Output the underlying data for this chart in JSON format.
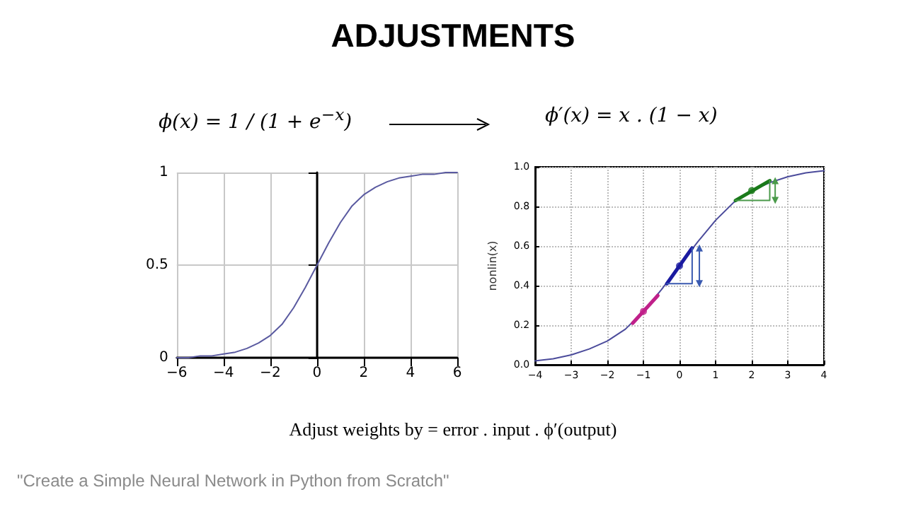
{
  "chart_data": [
    {
      "type": "line",
      "title": "ADJUSTMENTS",
      "annotations": [
        "ϕ(x) = 1 / (1 + e$^{−x}$)"
      ],
      "x": [
        -6,
        -5.5,
        -5,
        -4.5,
        -4,
        -3.5,
        -3,
        -2.5,
        -2,
        -1.5,
        -1,
        -0.5,
        0,
        0.5,
        1,
        1.5,
        2,
        2.5,
        3,
        3.5,
        4,
        4.5,
        5,
        5.5,
        6
      ],
      "series": [
        {
          "color": "#5a5aa0",
          "values": [
            0.0,
            0.0,
            0.01,
            0.01,
            0.02,
            0.03,
            0.05,
            0.08,
            0.12,
            0.18,
            0.27,
            0.38,
            0.5,
            0.62,
            0.73,
            0.82,
            0.88,
            0.92,
            0.95,
            0.97,
            0.98,
            0.99,
            0.99,
            1.0,
            1.0
          ]
        }
      ],
      "xlim": [
        -6,
        6
      ],
      "xticks": [
        {
          "value": -6,
          "label": "−6"
        },
        {
          "value": -4,
          "label": "−4"
        },
        {
          "value": -2,
          "label": "−2"
        },
        0,
        2,
        4,
        6
      ],
      "ylim": [
        0,
        1
      ],
      "yticks": [
        0,
        0.5,
        1
      ],
      "grid": true,
      "marker": "none",
      "line_style": "solid"
    },
    {
      "type": "line",
      "ylabel": "nonlin(x)",
      "annotations": [
        "ϕ′(x) = x . (1 − x)",
        "Adjust weights by = error . input . ϕ′(output)",
        "\"Create a Simple Neural Network in Python from Scratch\""
      ],
      "x": [
        -4,
        -3.5,
        -3,
        -2.5,
        -2,
        -1.5,
        -1,
        -0.5,
        0,
        0.5,
        1,
        1.5,
        2,
        2.5,
        3,
        3.5,
        4
      ],
      "series": [
        {
          "color": "#4b4b9b",
          "values": [
            0.02,
            0.03,
            0.05,
            0.08,
            0.12,
            0.18,
            0.27,
            0.38,
            0.5,
            0.62,
            0.73,
            0.82,
            0.88,
            0.92,
            0.95,
            0.97,
            0.98
          ]
        },
        {
          "color": "#c0208a",
          "x": [
            -1.3,
            -0.6
          ],
          "values": [
            0.21,
            0.35
          ]
        },
        {
          "color": "#1a1aa0",
          "x": [
            -0.35,
            0.35
          ],
          "values": [
            0.41,
            0.59
          ]
        },
        {
          "color": "#1a7a1a",
          "x": [
            1.55,
            2.5
          ],
          "values": [
            0.83,
            0.93
          ]
        },
        {
          "color": "#3a5ab0",
          "x": [
            -0.35,
            0.35,
            0.35
          ],
          "values": [
            0.41,
            0.41,
            0.59
          ]
        },
        {
          "color": "#4a9a4a",
          "x": [
            1.55,
            2.5,
            2.5
          ],
          "values": [
            0.83,
            0.83,
            0.93
          ]
        },
        {
          "color": "#3a5ab0",
          "x": [
            0.55,
            0.55
          ],
          "values": [
            0.41,
            0.59
          ],
          "marker": "triangle"
        },
        {
          "color": "#4a9a4a",
          "x": [
            2.65,
            2.65
          ],
          "values": [
            0.83,
            0.93
          ],
          "marker": "triangle"
        },
        {
          "type": "scatter",
          "x": [
            -1,
            0,
            2
          ],
          "values": [
            0.27,
            0.5,
            0.88
          ],
          "colors": [
            "#c0208a",
            "#1a1aa0",
            "#1a7a1a"
          ],
          "marker": "circle"
        }
      ],
      "xlim": [
        -4,
        4
      ],
      "xticks": [
        {
          "value": -4,
          "label": "−4"
        },
        {
          "value": -3,
          "label": "−3"
        },
        {
          "value": -2,
          "label": "−2"
        },
        {
          "value": -1,
          "label": "−1"
        },
        0,
        1,
        2,
        3,
        4
      ],
      "ylim": [
        0,
        1
      ],
      "yticks": [
        {
          "value": 0,
          "label": "0.0"
        },
        0.2,
        0.4,
        0.6,
        0.8,
        {
          "value": 1,
          "label": "1.0"
        }
      ],
      "grid": true,
      "marker": "none",
      "line_style": "solid"
    }
  ]
}
